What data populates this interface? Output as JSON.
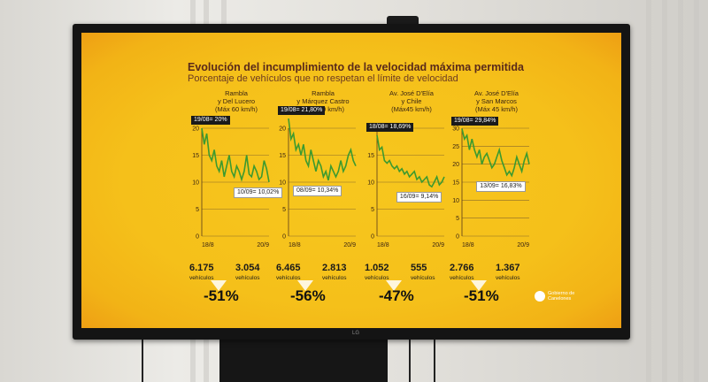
{
  "colors": {
    "screen": "#f5c01a",
    "line": "#3c9a2f",
    "text_dark": "#5a2a1a"
  },
  "title": "Evolución del incumplimiento de la velocidad máxima permitida",
  "subtitle": "Porcentaje de vehículos que no respetan el límite de velocidad",
  "tv_brand": "LG",
  "logo_text": [
    "Gobierno de",
    "Canelones"
  ],
  "chart_data": [
    {
      "type": "line",
      "title_lines": [
        "Rambla",
        "y Del Lucero",
        "(Máx 60 km/h)"
      ],
      "ylim": [
        0,
        20
      ],
      "yticks": [
        "0",
        "5",
        "10",
        "15",
        "20"
      ],
      "x_start": "18/8",
      "x_end": "20/9",
      "values": [
        20,
        17,
        19,
        15,
        14,
        16,
        13,
        12,
        14,
        11,
        13,
        15,
        12,
        11,
        13,
        12,
        10.5,
        12,
        15,
        11.5,
        11,
        13,
        12,
        10.5,
        11,
        14,
        12.5,
        10.02
      ],
      "max_label": "19/08= 20%",
      "min_label": "10/09= 10,02%",
      "before": "6.175",
      "after": "3.054",
      "unit": "vehículos",
      "change": "-51%"
    },
    {
      "type": "line",
      "title_lines": [
        "Rambla",
        "y Márquez Castro",
        "(Máx 60 km/h)"
      ],
      "ylim": [
        0,
        20
      ],
      "yticks": [
        "0",
        "5",
        "10",
        "15",
        "20"
      ],
      "x_start": "18/8",
      "x_end": "20/9",
      "values": [
        21.8,
        18,
        19,
        16,
        17,
        15,
        17,
        14,
        13,
        16,
        14,
        12,
        14,
        13,
        11,
        12,
        10.34,
        13,
        12,
        11,
        12,
        14,
        12,
        13,
        15,
        16,
        14,
        13
      ],
      "max_label": "19/08= 21,80%",
      "min_label": "08/09= 10,34%",
      "before": "6.465",
      "after": "2.813",
      "unit": "vehículos",
      "change": "-56%"
    },
    {
      "type": "line",
      "title_lines": [
        "Av. José D'Elía",
        "y Chile",
        "(Máx45 km/h)"
      ],
      "ylim": [
        0,
        20
      ],
      "yticks": [
        "0",
        "5",
        "10",
        "15",
        "20"
      ],
      "x_start": "18/8",
      "x_end": "20/9",
      "values": [
        18.69,
        16,
        16.5,
        14,
        13.5,
        14,
        13,
        12.5,
        13,
        12,
        12.5,
        11.5,
        12,
        11,
        11.5,
        12,
        10.5,
        11,
        10,
        10.5,
        11,
        9.5,
        9.14,
        10,
        11,
        9.5,
        10,
        11
      ],
      "max_label": "18/08= 18,69%",
      "min_label": "16/09= 9,14%",
      "before": "1.052",
      "after": "555",
      "unit": "vehículos",
      "change": "-47%"
    },
    {
      "type": "line",
      "title_lines": [
        "Av. José D'Elía",
        "y San Marcos",
        "(Máx 45 km/h)"
      ],
      "ylim": [
        0,
        30
      ],
      "yticks": [
        "0",
        "5",
        "10",
        "15",
        "20",
        "25",
        "30"
      ],
      "x_start": "18/8",
      "x_end": "20/9",
      "values": [
        29.84,
        27,
        28,
        24,
        27,
        24,
        22,
        24,
        20,
        22,
        23,
        21,
        19,
        20,
        22,
        24,
        21,
        19,
        17,
        18,
        16.83,
        19,
        22,
        20,
        18,
        21,
        23,
        20
      ],
      "max_label": "19/08= 29,84%",
      "min_label": "13/09= 16,83%",
      "before": "2.766",
      "after": "1.367",
      "unit": "vehículos",
      "change": "-51%"
    }
  ]
}
